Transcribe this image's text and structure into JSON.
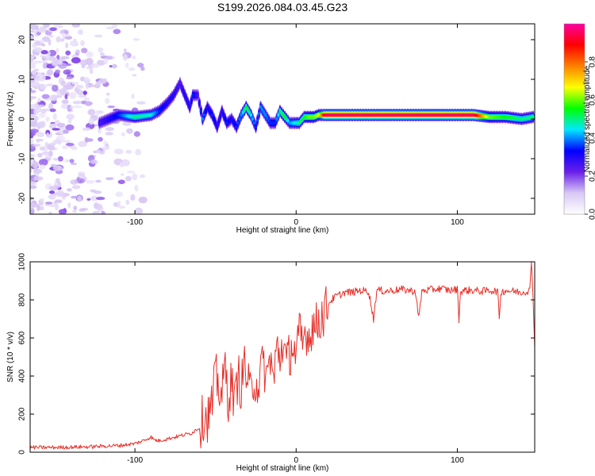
{
  "figure_title": "S199.2026.084.03.45.G23",
  "chart_data": [
    {
      "type": "heatmap",
      "xlabel": "Height of straight line (km)",
      "ylabel": "Frequency (Hz)",
      "xlim": [
        -165,
        148
      ],
      "ylim": [
        -24,
        24
      ],
      "xticks": [
        -100,
        0,
        100
      ],
      "yticks": [
        -20,
        -10,
        0,
        10,
        20
      ],
      "colorbar": {
        "label": "Normalized spectral amplitude",
        "range": [
          0,
          1
        ],
        "ticks": [
          0.0,
          0.2,
          0.4,
          0.6,
          0.8
        ],
        "tick_labels": [
          "0.0",
          "0.2",
          "0.4",
          "0.6",
          "0.8"
        ],
        "colors": [
          "#ffffff",
          "#d8c8f4",
          "#6a1fe8",
          "#0000ff",
          "#00e8ff",
          "#00ff00",
          "#ffff00",
          "#ff8000",
          "#ff0000",
          "#ff00a0"
        ]
      },
      "ridge": {
        "x": [
          -122,
          -110,
          -100,
          -90,
          -85,
          -80,
          -76,
          -72,
          -70,
          -66,
          -64,
          -61,
          -58,
          -55,
          -52,
          -49,
          -46,
          -43,
          -40,
          -37,
          -34,
          -31,
          -28,
          -25,
          -22,
          -19,
          -16,
          -13,
          -10,
          -7,
          -4,
          -1,
          2,
          5,
          8,
          11,
          14,
          18,
          40,
          60,
          80,
          100,
          110,
          120,
          130,
          140,
          147
        ],
        "freq": [
          -1,
          1,
          0.5,
          1,
          2,
          4,
          6,
          9,
          7,
          3,
          6,
          6,
          0,
          3,
          1,
          -2,
          2,
          -1,
          0,
          -2,
          1,
          3,
          1,
          -2,
          3,
          1,
          -1,
          -1,
          2,
          0.5,
          -1,
          -1,
          -1,
          0.5,
          0.5,
          0.5,
          1,
          1,
          1,
          1,
          1,
          1,
          1,
          0.5,
          0.5,
          0,
          0.5
        ],
        "amplitude": [
          0.25,
          0.35,
          0.5,
          0.45,
          0.35,
          0.3,
          0.3,
          0.25,
          0.3,
          0.3,
          0.35,
          0.25,
          0.4,
          0.3,
          0.35,
          0.3,
          0.3,
          0.35,
          0.3,
          0.35,
          0.4,
          0.55,
          0.45,
          0.35,
          0.4,
          0.4,
          0.35,
          0.35,
          0.5,
          0.55,
          0.4,
          0.45,
          0.5,
          0.55,
          0.6,
          0.6,
          0.65,
          0.95,
          0.95,
          0.95,
          0.95,
          0.95,
          0.95,
          0.6,
          0.55,
          0.5,
          0.5
        ]
      },
      "noise": {
        "x_range": [
          -165,
          -95
        ],
        "freq_range": [
          -24,
          24
        ]
      }
    },
    {
      "type": "line",
      "xlabel": "Height of straight line (km)",
      "ylabel": "SNR (10 * v/v)",
      "xlim": [
        -165,
        148
      ],
      "ylim": [
        0,
        1000
      ],
      "xticks": [
        -100,
        0,
        100
      ],
      "yticks": [
        0,
        200,
        400,
        600,
        800,
        1000
      ],
      "series": [
        {
          "name": "SNR",
          "color": "#e8302a",
          "x": [
            -165,
            -150,
            -130,
            -110,
            -100,
            -95,
            -90,
            -88,
            -85,
            -80,
            -75,
            -70,
            -65,
            -60,
            -57,
            -55,
            -52,
            -50,
            -48,
            -46,
            -44,
            -42,
            -40,
            -38,
            -36,
            -34,
            -32,
            -30,
            -28,
            -26,
            -24,
            -22,
            -20,
            -18,
            -16,
            -14,
            -12,
            -10,
            -8,
            -6,
            -4,
            -2,
            0,
            2,
            4,
            6,
            8,
            10,
            12,
            14,
            16,
            18,
            20,
            22,
            25,
            28,
            30,
            35,
            40,
            45,
            48,
            50,
            52,
            55,
            60,
            65,
            70,
            74,
            76,
            78,
            80,
            85,
            90,
            95,
            100,
            101,
            102,
            105,
            110,
            115,
            120,
            125,
            126,
            127,
            130,
            135,
            140,
            145,
            146,
            147,
            148
          ],
          "y": [
            25,
            25,
            28,
            35,
            45,
            60,
            80,
            65,
            60,
            70,
            80,
            90,
            100,
            130,
            200,
            180,
            250,
            400,
            350,
            300,
            450,
            280,
            380,
            250,
            420,
            330,
            480,
            350,
            300,
            400,
            350,
            420,
            460,
            380,
            520,
            360,
            550,
            500,
            600,
            450,
            520,
            580,
            480,
            620,
            560,
            650,
            600,
            680,
            650,
            700,
            720,
            740,
            780,
            800,
            820,
            830,
            840,
            840,
            850,
            845,
            700,
            850,
            850,
            845,
            850,
            855,
            850,
            845,
            700,
            845,
            850,
            855,
            860,
            850,
            855,
            700,
            845,
            850,
            850,
            845,
            850,
            845,
            700,
            840,
            850,
            845,
            840,
            850,
            1000,
            820,
            550
          ]
        }
      ]
    }
  ]
}
